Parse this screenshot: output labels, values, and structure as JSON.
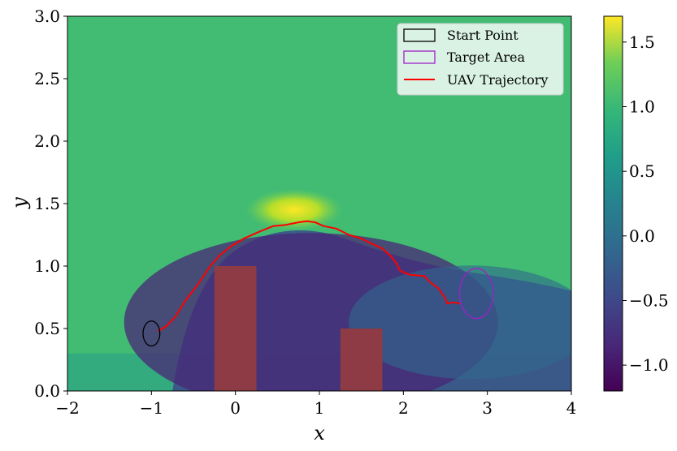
{
  "chart_data": {
    "type": "heatmap",
    "xlabel": "x",
    "ylabel": "y",
    "xlim": [
      -2,
      4
    ],
    "ylim": [
      0,
      3
    ],
    "x_ticks": [
      -2,
      -1,
      0,
      1,
      2,
      3,
      4
    ],
    "y_ticks": [
      "0.0",
      "0.5",
      "1.0",
      "1.5",
      "2.0",
      "2.5",
      "3.0"
    ],
    "colorbar": {
      "colormap": "viridis",
      "range": [
        -1.2,
        1.7
      ],
      "ticks": [
        "−1.0",
        "−0.5",
        "0.0",
        "0.5",
        "1.0",
        "1.5"
      ],
      "tick_values": [
        -1.0,
        -0.5,
        0.0,
        0.5,
        1.0,
        1.5
      ]
    },
    "background_value": 1.05,
    "obstacles": [
      {
        "x": [
          -0.25,
          0.25
        ],
        "y": [
          0,
          1.0
        ],
        "color": "#8e3b46"
      },
      {
        "x": [
          1.25,
          1.75
        ],
        "y": [
          0,
          0.5
        ],
        "color": "#8e3b46"
      }
    ],
    "start_point": {
      "center": [
        -1.0,
        0.46
      ],
      "half_width": 0.1,
      "half_height": 0.1,
      "color": "#000000"
    },
    "target_area": {
      "center": [
        2.87,
        0.78
      ],
      "half_width": 0.2,
      "half_height": 0.2,
      "color": "#a020c8"
    },
    "trajectory": {
      "color": "#ff0000",
      "points": [
        [
          -0.92,
          0.48
        ],
        [
          -0.82,
          0.52
        ],
        [
          -0.72,
          0.59
        ],
        [
          -0.6,
          0.72
        ],
        [
          -0.45,
          0.85
        ],
        [
          -0.3,
          1.0
        ],
        [
          -0.18,
          1.09
        ],
        [
          -0.05,
          1.16
        ],
        [
          0.1,
          1.22
        ],
        [
          0.3,
          1.28
        ],
        [
          0.45,
          1.32
        ],
        [
          0.6,
          1.33
        ],
        [
          0.75,
          1.35
        ],
        [
          0.85,
          1.36
        ],
        [
          0.95,
          1.35
        ],
        [
          1.05,
          1.32
        ],
        [
          1.2,
          1.3
        ],
        [
          1.35,
          1.25
        ],
        [
          1.5,
          1.22
        ],
        [
          1.62,
          1.18
        ],
        [
          1.75,
          1.14
        ],
        [
          1.85,
          1.08
        ],
        [
          1.92,
          1.02
        ],
        [
          1.95,
          0.97
        ],
        [
          2.0,
          0.95
        ],
        [
          2.08,
          0.93
        ],
        [
          2.25,
          0.92
        ],
        [
          2.32,
          0.87
        ],
        [
          2.42,
          0.82
        ],
        [
          2.5,
          0.74
        ],
        [
          2.52,
          0.7
        ],
        [
          2.6,
          0.71
        ],
        [
          2.67,
          0.7
        ]
      ]
    },
    "legend": {
      "placement": "top-right",
      "entries": [
        "Start Point",
        "Target Area",
        "UAV Trajectory"
      ]
    }
  }
}
